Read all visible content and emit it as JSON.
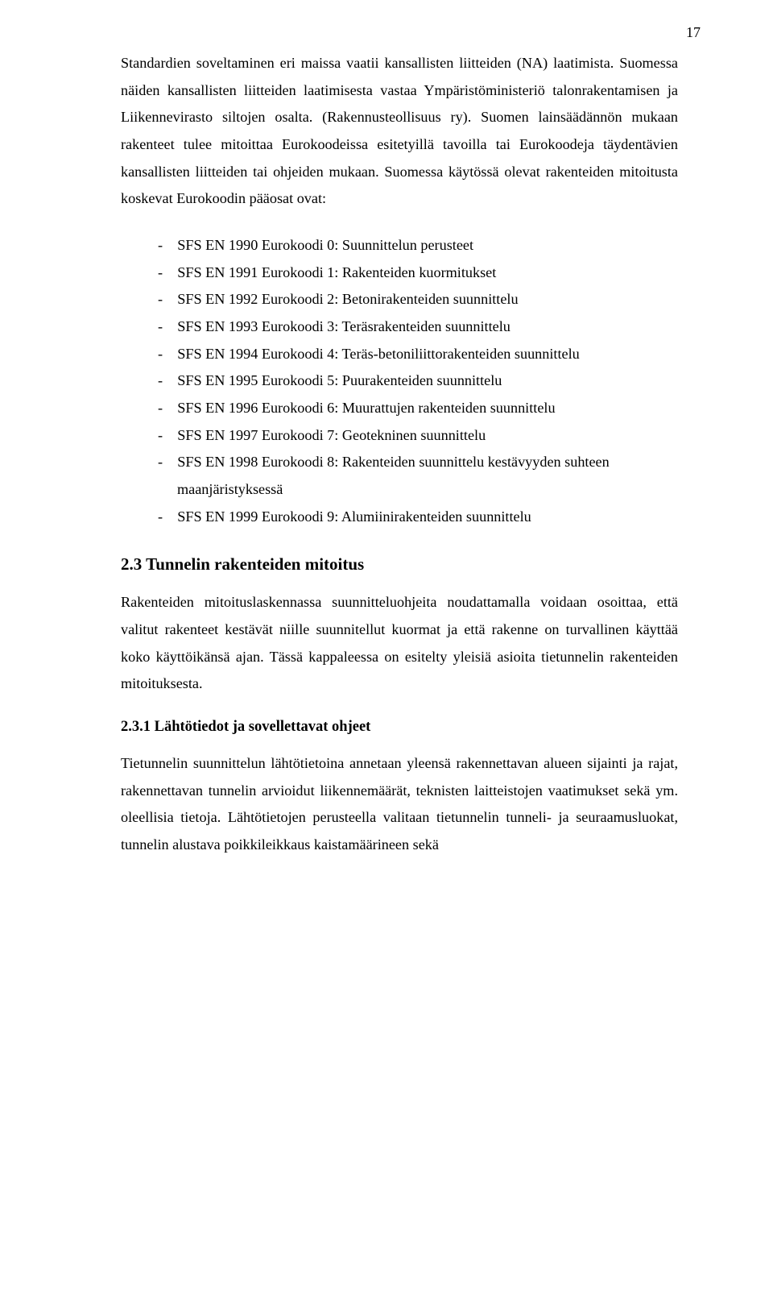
{
  "page_number": "17",
  "para1": "Standardien soveltaminen eri maissa vaatii kansallisten liitteiden (NA) laatimista. Suomessa näiden kansallisten liitteiden laatimisesta vastaa Ympäristöministeriö talonrakentamisen ja Liikennevirasto siltojen osalta. (Rakennusteollisuus ry). Suomen lainsäädännön mukaan rakenteet tulee mitoittaa Eurokoodeissa esitetyillä tavoilla tai Eurokoodeja täydentävien kansallisten liitteiden tai ohjeiden mukaan. Suomessa käytössä olevat rakenteiden mitoitusta koskevat Eurokoodin pääosat ovat:",
  "codes": [
    "SFS EN 1990 Eurokoodi 0: Suunnittelun perusteet",
    "SFS EN 1991 Eurokoodi 1: Rakenteiden kuormitukset",
    "SFS EN 1992 Eurokoodi 2: Betonirakenteiden suunnittelu",
    "SFS EN 1993 Eurokoodi 3: Teräsrakenteiden suunnittelu",
    "SFS EN 1994 Eurokoodi 4: Teräs-betoniliittorakenteiden suunnittelu",
    "SFS EN 1995 Eurokoodi 5: Puurakenteiden suunnittelu",
    "SFS EN 1996 Eurokoodi 6: Muurattujen rakenteiden suunnittelu",
    "SFS EN 1997 Eurokoodi 7: Geotekninen suunnittelu",
    "SFS EN 1998 Eurokoodi 8: Rakenteiden suunnittelu kestävyyden suhteen maanjäristyksessä",
    "SFS EN 1999 Eurokoodi 9: Alumiinirakenteiden suunnittelu"
  ],
  "section_heading": "2.3 Tunnelin rakenteiden mitoitus",
  "para2": "Rakenteiden mitoituslaskennassa suunnitteluohjeita noudattamalla voidaan osoittaa, että valitut rakenteet kestävät niille suunnitellut kuormat ja että rakenne on turvallinen käyttää koko käyttöikänsä ajan. Tässä kappaleessa on esitelty yleisiä asioita tietunnelin rakenteiden mitoituksesta.",
  "subsection_heading": "2.3.1 Lähtötiedot ja sovellettavat ohjeet",
  "para3": "Tietunnelin suunnittelun lähtötietoina annetaan yleensä rakennettavan alueen sijainti ja rajat, rakennettavan tunnelin arvioidut liikennemäärät, teknisten laitteistojen vaatimukset sekä ym. oleellisia tietoja. Lähtötietojen perusteella valitaan tietunnelin tunneli- ja seuraamusluokat, tunnelin alustava poikkileikkaus kaistamäärineen sekä"
}
